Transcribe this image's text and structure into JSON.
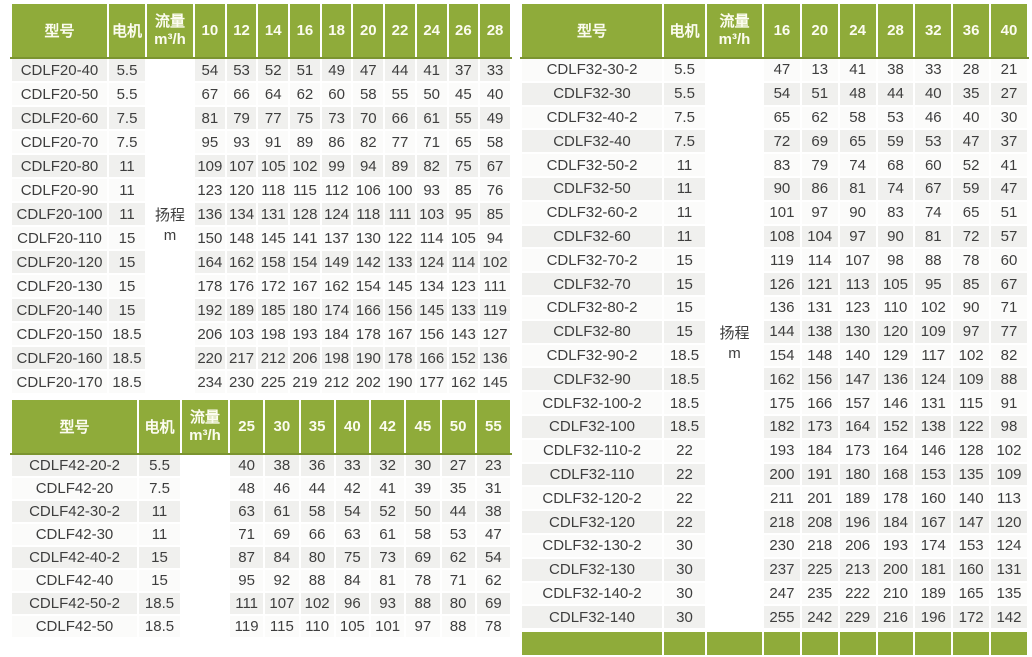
{
  "colors": {
    "header_bg": "#8fab3a",
    "header_edge": "#7b9430",
    "header_text": "#fcfcf0",
    "row_base": "#fbfbfa",
    "row_alt": "#f0f0ee",
    "cell_text": "#3e3e3e",
    "grid": "#ffffff"
  },
  "labels": {
    "model": "型号",
    "motor": "电机",
    "flow_line1": "流量",
    "flow_line2": "m³/h",
    "head_line1": "扬程",
    "head_line2": "m"
  },
  "footer": {
    "partial_next_header_visible": true
  },
  "tables": [
    {
      "id": "cdlf20",
      "series": "CDLF20",
      "flow_columns": [
        "10",
        "12",
        "14",
        "16",
        "18",
        "20",
        "22",
        "24",
        "26",
        "28"
      ],
      "head_label": {
        "line1": "扬程",
        "line2": "m"
      },
      "rows": [
        {
          "model": "CDLF20-40",
          "motor": "5.5",
          "values": [
            54,
            53,
            52,
            51,
            49,
            47,
            44,
            41,
            37,
            33
          ]
        },
        {
          "model": "CDLF20-50",
          "motor": "5.5",
          "values": [
            67,
            66,
            64,
            62,
            60,
            58,
            55,
            50,
            45,
            40
          ]
        },
        {
          "model": "CDLF20-60",
          "motor": "7.5",
          "values": [
            81,
            79,
            77,
            75,
            73,
            70,
            66,
            61,
            55,
            49
          ]
        },
        {
          "model": "CDLF20-70",
          "motor": "7.5",
          "values": [
            95,
            93,
            91,
            89,
            86,
            82,
            77,
            71,
            65,
            58
          ]
        },
        {
          "model": "CDLF20-80",
          "motor": "11",
          "values": [
            109,
            107,
            105,
            102,
            99,
            94,
            89,
            82,
            75,
            67
          ]
        },
        {
          "model": "CDLF20-90",
          "motor": "11",
          "values": [
            123,
            120,
            118,
            115,
            112,
            106,
            100,
            93,
            85,
            76
          ]
        },
        {
          "model": "CDLF20-100",
          "motor": "11",
          "values": [
            136,
            134,
            131,
            128,
            124,
            118,
            111,
            103,
            95,
            85
          ]
        },
        {
          "model": "CDLF20-110",
          "motor": "15",
          "values": [
            150,
            148,
            145,
            141,
            137,
            130,
            122,
            114,
            105,
            94
          ]
        },
        {
          "model": "CDLF20-120",
          "motor": "15",
          "values": [
            164,
            162,
            158,
            154,
            149,
            142,
            133,
            124,
            114,
            102
          ]
        },
        {
          "model": "CDLF20-130",
          "motor": "15",
          "values": [
            178,
            176,
            172,
            167,
            162,
            154,
            145,
            134,
            123,
            111
          ]
        },
        {
          "model": "CDLF20-140",
          "motor": "15",
          "values": [
            192,
            189,
            185,
            180,
            174,
            166,
            156,
            145,
            133,
            119
          ]
        },
        {
          "model": "CDLF20-150",
          "motor": "18.5",
          "values": [
            206,
            103,
            198,
            193,
            184,
            178,
            167,
            156,
            143,
            127
          ]
        },
        {
          "model": "CDLF20-160",
          "motor": "18.5",
          "values": [
            220,
            217,
            212,
            206,
            198,
            190,
            178,
            166,
            152,
            136
          ]
        },
        {
          "model": "CDLF20-170",
          "motor": "18.5",
          "values": [
            234,
            230,
            225,
            219,
            212,
            202,
            190,
            177,
            162,
            145
          ]
        }
      ]
    },
    {
      "id": "cdlf42",
      "series": "CDLF42",
      "flow_columns": [
        "25",
        "30",
        "35",
        "40",
        "42",
        "45",
        "50",
        "55"
      ],
      "head_label": {
        "line1": "",
        "line2": ""
      },
      "rows": [
        {
          "model": "CDLF42-20-2",
          "motor": "5.5",
          "values": [
            40,
            38,
            36,
            33,
            32,
            30,
            27,
            23
          ]
        },
        {
          "model": "CDLF42-20",
          "motor": "7.5",
          "values": [
            48,
            46,
            44,
            42,
            41,
            39,
            35,
            31
          ]
        },
        {
          "model": "CDLF42-30-2",
          "motor": "11",
          "values": [
            63,
            61,
            58,
            54,
            52,
            50,
            44,
            38
          ]
        },
        {
          "model": "CDLF42-30",
          "motor": "11",
          "values": [
            71,
            69,
            66,
            63,
            61,
            58,
            53,
            47
          ]
        },
        {
          "model": "CDLF42-40-2",
          "motor": "15",
          "values": [
            87,
            84,
            80,
            75,
            73,
            69,
            62,
            54
          ]
        },
        {
          "model": "CDLF42-40",
          "motor": "15",
          "values": [
            95,
            92,
            88,
            84,
            81,
            78,
            71,
            62
          ]
        },
        {
          "model": "CDLF42-50-2",
          "motor": "18.5",
          "values": [
            111,
            107,
            102,
            96,
            93,
            88,
            80,
            69
          ]
        },
        {
          "model": "CDLF42-50",
          "motor": "18.5",
          "values": [
            119,
            115,
            110,
            105,
            101,
            97,
            88,
            78
          ]
        }
      ]
    },
    {
      "id": "cdlf32",
      "series": "CDLF32",
      "flow_columns": [
        "16",
        "20",
        "24",
        "28",
        "32",
        "36",
        "40"
      ],
      "head_label": {
        "line1": "扬程",
        "line2": "m"
      },
      "rows": [
        {
          "model": "CDLF32-30-2",
          "motor": "5.5",
          "values": [
            47,
            13,
            41,
            38,
            33,
            28,
            21
          ]
        },
        {
          "model": "CDLF32-30",
          "motor": "5.5",
          "values": [
            54,
            51,
            48,
            44,
            40,
            35,
            27
          ]
        },
        {
          "model": "CDLF32-40-2",
          "motor": "7.5",
          "values": [
            65,
            62,
            58,
            53,
            46,
            40,
            30
          ]
        },
        {
          "model": "CDLF32-40",
          "motor": "7.5",
          "values": [
            72,
            69,
            65,
            59,
            53,
            47,
            37
          ]
        },
        {
          "model": "CDLF32-50-2",
          "motor": "11",
          "values": [
            83,
            79,
            74,
            68,
            60,
            52,
            41
          ]
        },
        {
          "model": "CDLF32-50",
          "motor": "11",
          "values": [
            90,
            86,
            81,
            74,
            67,
            59,
            47
          ]
        },
        {
          "model": "CDLF32-60-2",
          "motor": "11",
          "values": [
            101,
            97,
            90,
            83,
            74,
            65,
            51
          ]
        },
        {
          "model": "CDLF32-60",
          "motor": "11",
          "values": [
            108,
            104,
            97,
            90,
            81,
            72,
            57
          ]
        },
        {
          "model": "CDLF32-70-2",
          "motor": "15",
          "values": [
            119,
            114,
            107,
            98,
            88,
            78,
            60
          ]
        },
        {
          "model": "CDLF32-70",
          "motor": "15",
          "values": [
            126,
            121,
            113,
            105,
            95,
            85,
            67
          ]
        },
        {
          "model": "CDLF32-80-2",
          "motor": "15",
          "values": [
            136,
            131,
            123,
            110,
            102,
            90,
            71
          ]
        },
        {
          "model": "CDLF32-80",
          "motor": "15",
          "values": [
            144,
            138,
            130,
            120,
            109,
            97,
            77
          ]
        },
        {
          "model": "CDLF32-90-2",
          "motor": "18.5",
          "values": [
            154,
            148,
            140,
            129,
            117,
            102,
            82
          ]
        },
        {
          "model": "CDLF32-90",
          "motor": "18.5",
          "values": [
            162,
            156,
            147,
            136,
            124,
            109,
            88
          ]
        },
        {
          "model": "CDLF32-100-2",
          "motor": "18.5",
          "values": [
            175,
            166,
            157,
            146,
            131,
            115,
            91
          ]
        },
        {
          "model": "CDLF32-100",
          "motor": "18.5",
          "values": [
            182,
            173,
            164,
            152,
            138,
            122,
            98
          ]
        },
        {
          "model": "CDLF32-110-2",
          "motor": "22",
          "values": [
            193,
            184,
            173,
            164,
            146,
            128,
            102
          ]
        },
        {
          "model": "CDLF32-110",
          "motor": "22",
          "values": [
            200,
            191,
            180,
            168,
            153,
            135,
            109
          ]
        },
        {
          "model": "CDLF32-120-2",
          "motor": "22",
          "values": [
            211,
            201,
            189,
            178,
            160,
            140,
            113
          ]
        },
        {
          "model": "CDLF32-120",
          "motor": "22",
          "values": [
            218,
            208,
            196,
            184,
            167,
            147,
            120
          ]
        },
        {
          "model": "CDLF32-130-2",
          "motor": "30",
          "values": [
            230,
            218,
            206,
            193,
            174,
            153,
            124
          ]
        },
        {
          "model": "CDLF32-130",
          "motor": "30",
          "values": [
            237,
            225,
            213,
            200,
            181,
            160,
            131
          ]
        },
        {
          "model": "CDLF32-140-2",
          "motor": "30",
          "values": [
            247,
            235,
            222,
            210,
            189,
            165,
            135
          ]
        },
        {
          "model": "CDLF32-140",
          "motor": "30",
          "values": [
            255,
            242,
            229,
            216,
            196,
            172,
            142
          ]
        }
      ]
    }
  ]
}
